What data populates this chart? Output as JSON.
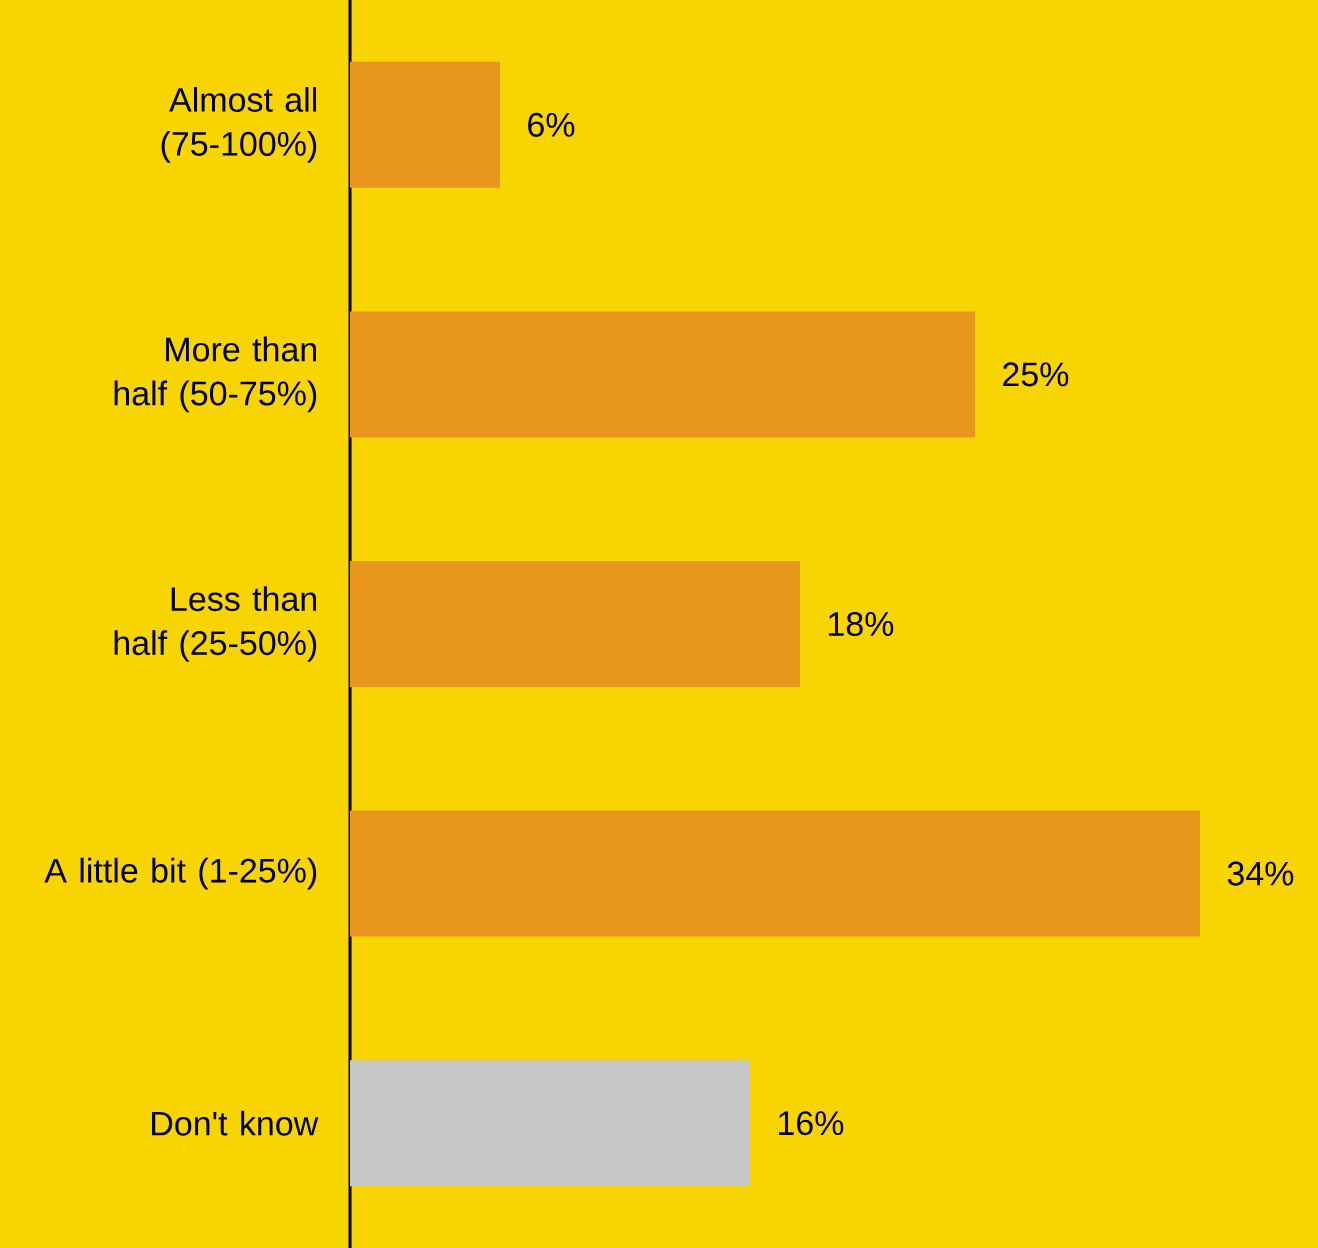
{
  "chart_data": {
    "type": "bar",
    "orientation": "horizontal",
    "categories": [
      "Almost all (75-100%)",
      "More than half (50-75%)",
      "Less than half (25-50%)",
      "A little bit (1-25%)",
      "Don't know"
    ],
    "values": [
      6,
      25,
      18,
      34,
      16
    ],
    "colors": [
      "#e8961e",
      "#e8961e",
      "#e8961e",
      "#e8961e",
      "#c8c8c8"
    ],
    "value_labels": [
      "6%",
      "25%",
      "18%",
      "34%",
      "16%"
    ]
  }
}
